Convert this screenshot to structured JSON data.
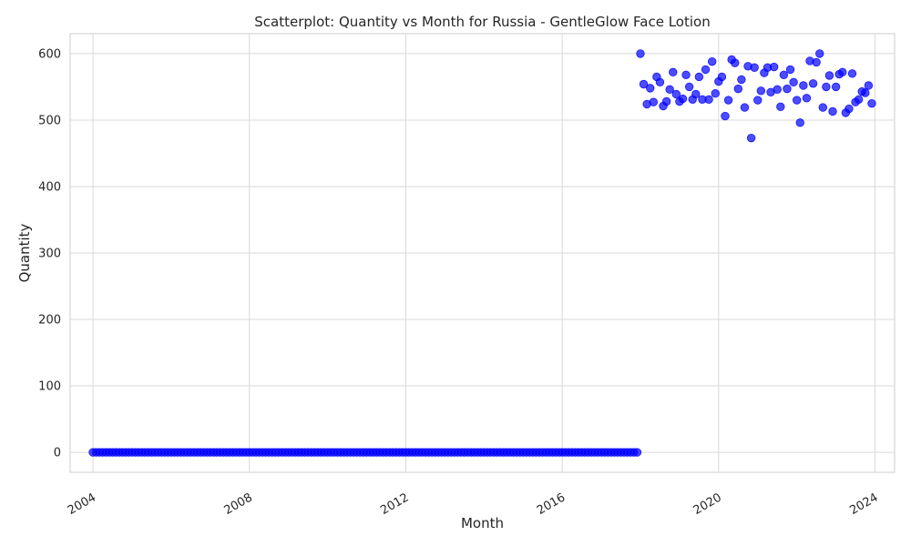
{
  "chart_data": {
    "type": "scatter",
    "title": "Scatterplot: Quantity vs Month for Russia - GentleGlow Face Lotion",
    "xlabel": "Month",
    "ylabel": "Quantity",
    "x_ticks": [
      "2004",
      "2008",
      "2012",
      "2016",
      "2020",
      "2024"
    ],
    "y_ticks": [
      0,
      100,
      200,
      300,
      400,
      500,
      600
    ],
    "ylim": [
      -30,
      630
    ],
    "xlim": [
      "2003-06",
      "2024-07"
    ],
    "grid": true,
    "marker_color": "#0000ff",
    "zero_period": {
      "from": "2004-01",
      "to": "2017-12",
      "value": 0
    },
    "series": [
      {
        "x": [
          "2018-01",
          "2018-02",
          "2018-03",
          "2018-04",
          "2018-05",
          "2018-06",
          "2018-07",
          "2018-08",
          "2018-09",
          "2018-10",
          "2018-11",
          "2018-12",
          "2019-01",
          "2019-02",
          "2019-03",
          "2019-04",
          "2019-05",
          "2019-06",
          "2019-07",
          "2019-08",
          "2019-09",
          "2019-10",
          "2019-11",
          "2019-12",
          "2020-01",
          "2020-02",
          "2020-03",
          "2020-04",
          "2020-05",
          "2020-06",
          "2020-07",
          "2020-08",
          "2020-09",
          "2020-10",
          "2020-11",
          "2020-12",
          "2021-01",
          "2021-02",
          "2021-03",
          "2021-04",
          "2021-05",
          "2021-06",
          "2021-07",
          "2021-08",
          "2021-09",
          "2021-10",
          "2021-11",
          "2021-12",
          "2022-01",
          "2022-02",
          "2022-03",
          "2022-04",
          "2022-05",
          "2022-06",
          "2022-07",
          "2022-08",
          "2022-09",
          "2022-10",
          "2022-11",
          "2022-12",
          "2023-01",
          "2023-02",
          "2023-03",
          "2023-04",
          "2023-05",
          "2023-06",
          "2023-07",
          "2023-08",
          "2023-09",
          "2023-10",
          "2023-11",
          "2023-12"
        ],
        "values": [
          600,
          554,
          524,
          548,
          527,
          565,
          557,
          521,
          528,
          546,
          572,
          539,
          528,
          532,
          568,
          550,
          531,
          539,
          565,
          531,
          576,
          531,
          588,
          540,
          558,
          565,
          506,
          530,
          591,
          586,
          547,
          561,
          519,
          581,
          473,
          579,
          530,
          544,
          571,
          579,
          542,
          580,
          546,
          520,
          568,
          547,
          576,
          557,
          530,
          496,
          552,
          533,
          589,
          555,
          587,
          600,
          519,
          550,
          567,
          513,
          550,
          569,
          572,
          511,
          517,
          570,
          527,
          531,
          543,
          541,
          552,
          525
        ]
      }
    ]
  }
}
